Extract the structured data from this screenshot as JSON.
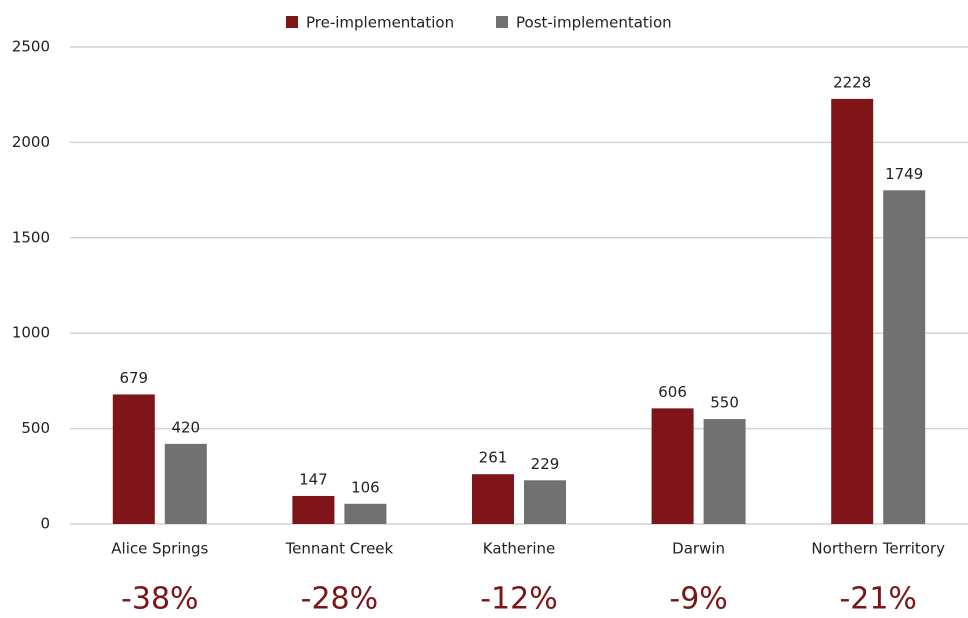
{
  "chart_data": {
    "type": "bar",
    "categories": [
      "Alice Springs",
      "Tennant Creek",
      "Katherine",
      "Darwin",
      "Northern Territory"
    ],
    "series": [
      {
        "name": "Pre-implementation",
        "color": "#7f1518",
        "values": [
          679,
          147,
          261,
          606,
          2228
        ]
      },
      {
        "name": "Post-implementation",
        "color": "#717171",
        "values": [
          420,
          106,
          229,
          550,
          1749
        ]
      }
    ],
    "annotations": [
      "-38%",
      "-28%",
      "-12%",
      "-9%",
      "-21%"
    ],
    "ylim": [
      0,
      2500
    ],
    "yticks": [
      0,
      500,
      1000,
      1500,
      2000,
      2500
    ],
    "grid": true,
    "legend": "top"
  }
}
